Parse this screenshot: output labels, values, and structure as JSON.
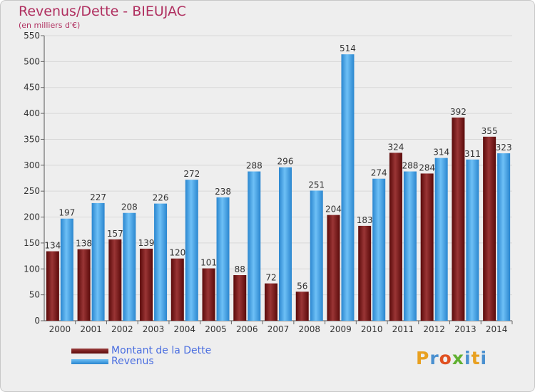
{
  "title": "Revenus/Dette - BIEUJAC",
  "subtitle": "(en milliers d'€)",
  "logo": {
    "letters": [
      "P",
      "r",
      "o",
      "x",
      "i",
      "t",
      "i"
    ],
    "colors": [
      "#e8a020",
      "#4a90d0",
      "#e05020",
      "#60b030",
      "#4a90d0",
      "#e8a020",
      "#4a90d0"
    ]
  },
  "colors": {
    "dette": "#7a1a1a",
    "revenus": "#4ea6e6",
    "axis_text": "#333333",
    "grid": "#d8d8d8"
  },
  "chart_data": {
    "type": "bar",
    "title": "Revenus/Dette - BIEUJAC",
    "subtitle": "(en milliers d'€)",
    "categories": [
      "2000",
      "2001",
      "2002",
      "2003",
      "2004",
      "2005",
      "2006",
      "2007",
      "2008",
      "2009",
      "2010",
      "2011",
      "2012",
      "2013",
      "2014"
    ],
    "series": [
      {
        "name": "Montant de la Dette",
        "values": [
          134,
          138,
          157,
          139,
          120,
          101,
          88,
          72,
          56,
          204,
          183,
          324,
          284,
          392,
          355
        ]
      },
      {
        "name": "Revenus",
        "values": [
          197,
          227,
          208,
          226,
          272,
          238,
          288,
          296,
          251,
          514,
          274,
          288,
          314,
          311,
          323
        ]
      }
    ],
    "yticks": [
      "0",
      "50",
      "100",
      "150",
      "200",
      "250",
      "300",
      "350",
      "400",
      "450",
      "500",
      "550"
    ],
    "ylim": [
      0,
      550
    ],
    "grid": true,
    "legend_position": "bottom-left"
  }
}
